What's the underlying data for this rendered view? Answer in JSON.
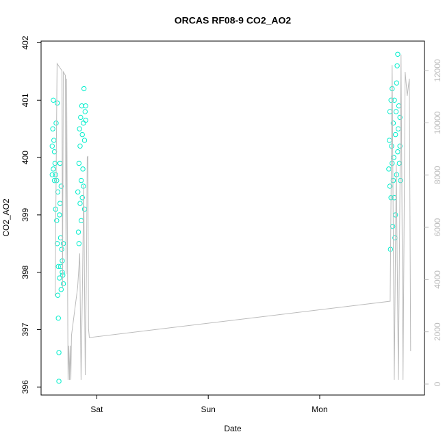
{
  "chart_data": {
    "type": "scatter",
    "title": "ORCAS RF08-9 CO2_AO2",
    "xlabel": "Date",
    "ylabel": "CO2_AO2",
    "xlim": [
      0.5,
      3.94
    ],
    "xticks": [
      {
        "value": 1,
        "label": "Sat"
      },
      {
        "value": 2,
        "label": "Sun"
      },
      {
        "value": 3,
        "label": "Mon"
      }
    ],
    "ylim": [
      395.86,
      402.03
    ],
    "yticks": [
      396,
      397,
      398,
      399,
      400,
      401,
      402
    ],
    "y2lim": [
      -420,
      13130
    ],
    "y2ticks": [
      0,
      2000,
      4000,
      6000,
      8000,
      10000,
      12000
    ],
    "series": [
      {
        "type": "scatter",
        "color": "#00eecc",
        "x": [
          0.6,
          0.6,
          0.605,
          0.61,
          0.61,
          0.615,
          0.62,
          0.62,
          0.625,
          0.63,
          0.63,
          0.635,
          0.64,
          0.64,
          0.645,
          0.645,
          0.65,
          0.65,
          0.655,
          0.655,
          0.66,
          0.66,
          0.665,
          0.665,
          0.67,
          0.67,
          0.675,
          0.675,
          0.68,
          0.68,
          0.685,
          0.69,
          0.69,
          0.695,
          0.7,
          0.7,
          0.83,
          0.835,
          0.84,
          0.84,
          0.845,
          0.85,
          0.85,
          0.855,
          0.86,
          0.86,
          0.865,
          0.87,
          0.87,
          0.875,
          0.88,
          0.88,
          0.885,
          0.89,
          0.89,
          0.895,
          0.9,
          0.9,
          3.62,
          3.625,
          3.63,
          3.63,
          3.635,
          3.64,
          3.64,
          3.645,
          3.65,
          3.65,
          3.655,
          3.66,
          3.66,
          3.665,
          3.67,
          3.67,
          3.675,
          3.68,
          3.68,
          3.685,
          3.69,
          3.69,
          3.695,
          3.7,
          3.7,
          3.705,
          3.71,
          3.715,
          3.72,
          3.72,
          3.725
        ],
        "values": [
          399.7,
          400.2,
          400.5,
          401.0,
          399.8,
          400.3,
          399.6,
          400.1,
          399.9,
          399.1,
          399.7,
          400.6,
          398.9,
          399.6,
          400.95,
          398.5,
          399.4,
          397.6,
          397.2,
          398.1,
          396.1,
          396.6,
          399.0,
          397.9,
          399.2,
          399.9,
          398.6,
          398.1,
          397.7,
          399.5,
          398.4,
          398.0,
          398.2,
          397.95,
          398.5,
          397.8,
          399.4,
          398.7,
          399.9,
          398.5,
          400.5,
          399.2,
          400.2,
          400.7,
          399.6,
          398.9,
          400.9,
          399.3,
          400.4,
          399.8,
          399.5,
          400.6,
          401.2,
          399.1,
          400.3,
          400.8,
          400.9,
          400.65,
          399.8,
          400.3,
          400.8,
          399.5,
          398.4,
          401.0,
          399.3,
          400.2,
          401.2,
          399.9,
          398.8,
          400.6,
          399.6,
          400.0,
          401.0,
          399.3,
          398.6,
          400.4,
          399.0,
          400.8,
          401.3,
          399.7,
          401.6,
          400.1,
          401.8,
          400.5,
          400.9,
          399.9,
          400.2,
          400.7,
          399.6
        ]
      },
      {
        "type": "line",
        "axis": "y2",
        "color": "#bbbbbb",
        "x": [
          0.626,
          0.644,
          0.687,
          0.693,
          0.699,
          0.718,
          0.724,
          0.73,
          0.742,
          0.748,
          0.755,
          0.761,
          0.767,
          0.773,
          0.828,
          0.847,
          0.859,
          0.871,
          0.883,
          0.896,
          0.908,
          0.914,
          0.92,
          0.926,
          0.933,
          3.632,
          3.65,
          3.669,
          3.687,
          3.706,
          3.73,
          3.748,
          3.767,
          3.785,
          3.804,
          3.816
        ],
        "values": [
          3380,
          12270,
          12000,
          3700,
          11950,
          11820,
          4220,
          11690,
          160,
          1470,
          160,
          1470,
          160,
          1860,
          3700,
          5000,
          160,
          3700,
          7630,
          340,
          4740,
          8680,
          8730,
          2120,
          1780,
          3170,
          12210,
          160,
          8410,
          160,
          12610,
          160,
          11950,
          11030,
          11690,
          1260
        ]
      }
    ]
  }
}
